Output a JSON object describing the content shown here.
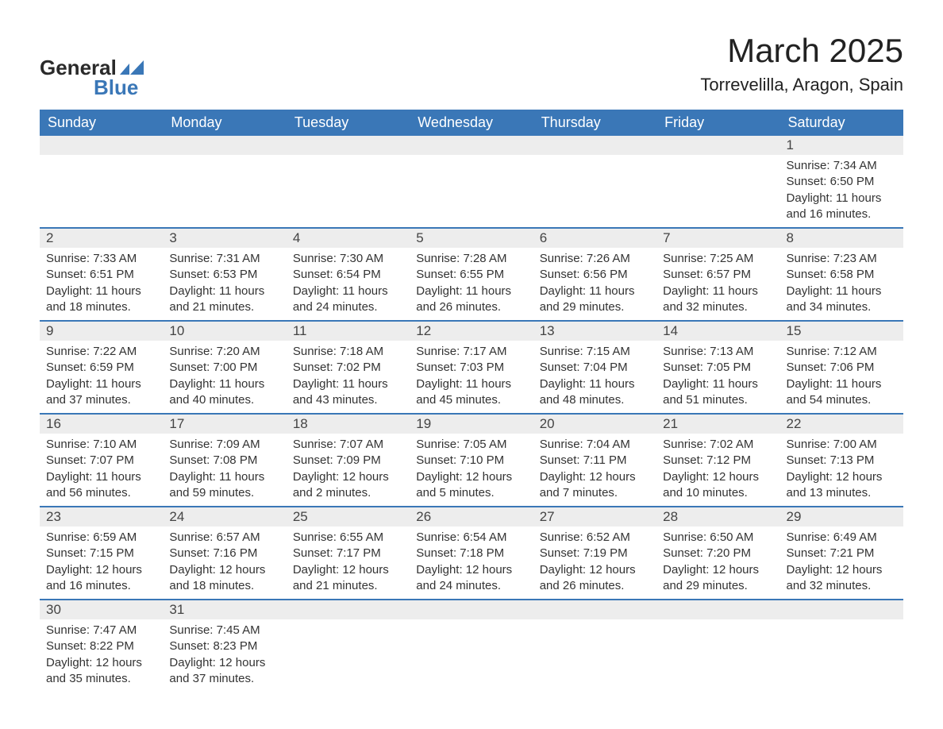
{
  "logo": {
    "text1": "General",
    "text2": "Blue",
    "shape_color": "#3a77b7"
  },
  "title": "March 2025",
  "location": "Torrevelilla, Aragon, Spain",
  "colors": {
    "header_bg": "#3a77b7",
    "header_fg": "#ffffff",
    "daynum_bg": "#ededed",
    "row_border": "#3a77b7",
    "text": "#333333"
  },
  "weekdays": [
    "Sunday",
    "Monday",
    "Tuesday",
    "Wednesday",
    "Thursday",
    "Friday",
    "Saturday"
  ],
  "weeks": [
    [
      {
        "day": "",
        "sunrise": "",
        "sunset": "",
        "daylight": ""
      },
      {
        "day": "",
        "sunrise": "",
        "sunset": "",
        "daylight": ""
      },
      {
        "day": "",
        "sunrise": "",
        "sunset": "",
        "daylight": ""
      },
      {
        "day": "",
        "sunrise": "",
        "sunset": "",
        "daylight": ""
      },
      {
        "day": "",
        "sunrise": "",
        "sunset": "",
        "daylight": ""
      },
      {
        "day": "",
        "sunrise": "",
        "sunset": "",
        "daylight": ""
      },
      {
        "day": "1",
        "sunrise": "Sunrise: 7:34 AM",
        "sunset": "Sunset: 6:50 PM",
        "daylight": "Daylight: 11 hours and 16 minutes."
      }
    ],
    [
      {
        "day": "2",
        "sunrise": "Sunrise: 7:33 AM",
        "sunset": "Sunset: 6:51 PM",
        "daylight": "Daylight: 11 hours and 18 minutes."
      },
      {
        "day": "3",
        "sunrise": "Sunrise: 7:31 AM",
        "sunset": "Sunset: 6:53 PM",
        "daylight": "Daylight: 11 hours and 21 minutes."
      },
      {
        "day": "4",
        "sunrise": "Sunrise: 7:30 AM",
        "sunset": "Sunset: 6:54 PM",
        "daylight": "Daylight: 11 hours and 24 minutes."
      },
      {
        "day": "5",
        "sunrise": "Sunrise: 7:28 AM",
        "sunset": "Sunset: 6:55 PM",
        "daylight": "Daylight: 11 hours and 26 minutes."
      },
      {
        "day": "6",
        "sunrise": "Sunrise: 7:26 AM",
        "sunset": "Sunset: 6:56 PM",
        "daylight": "Daylight: 11 hours and 29 minutes."
      },
      {
        "day": "7",
        "sunrise": "Sunrise: 7:25 AM",
        "sunset": "Sunset: 6:57 PM",
        "daylight": "Daylight: 11 hours and 32 minutes."
      },
      {
        "day": "8",
        "sunrise": "Sunrise: 7:23 AM",
        "sunset": "Sunset: 6:58 PM",
        "daylight": "Daylight: 11 hours and 34 minutes."
      }
    ],
    [
      {
        "day": "9",
        "sunrise": "Sunrise: 7:22 AM",
        "sunset": "Sunset: 6:59 PM",
        "daylight": "Daylight: 11 hours and 37 minutes."
      },
      {
        "day": "10",
        "sunrise": "Sunrise: 7:20 AM",
        "sunset": "Sunset: 7:00 PM",
        "daylight": "Daylight: 11 hours and 40 minutes."
      },
      {
        "day": "11",
        "sunrise": "Sunrise: 7:18 AM",
        "sunset": "Sunset: 7:02 PM",
        "daylight": "Daylight: 11 hours and 43 minutes."
      },
      {
        "day": "12",
        "sunrise": "Sunrise: 7:17 AM",
        "sunset": "Sunset: 7:03 PM",
        "daylight": "Daylight: 11 hours and 45 minutes."
      },
      {
        "day": "13",
        "sunrise": "Sunrise: 7:15 AM",
        "sunset": "Sunset: 7:04 PM",
        "daylight": "Daylight: 11 hours and 48 minutes."
      },
      {
        "day": "14",
        "sunrise": "Sunrise: 7:13 AM",
        "sunset": "Sunset: 7:05 PM",
        "daylight": "Daylight: 11 hours and 51 minutes."
      },
      {
        "day": "15",
        "sunrise": "Sunrise: 7:12 AM",
        "sunset": "Sunset: 7:06 PM",
        "daylight": "Daylight: 11 hours and 54 minutes."
      }
    ],
    [
      {
        "day": "16",
        "sunrise": "Sunrise: 7:10 AM",
        "sunset": "Sunset: 7:07 PM",
        "daylight": "Daylight: 11 hours and 56 minutes."
      },
      {
        "day": "17",
        "sunrise": "Sunrise: 7:09 AM",
        "sunset": "Sunset: 7:08 PM",
        "daylight": "Daylight: 11 hours and 59 minutes."
      },
      {
        "day": "18",
        "sunrise": "Sunrise: 7:07 AM",
        "sunset": "Sunset: 7:09 PM",
        "daylight": "Daylight: 12 hours and 2 minutes."
      },
      {
        "day": "19",
        "sunrise": "Sunrise: 7:05 AM",
        "sunset": "Sunset: 7:10 PM",
        "daylight": "Daylight: 12 hours and 5 minutes."
      },
      {
        "day": "20",
        "sunrise": "Sunrise: 7:04 AM",
        "sunset": "Sunset: 7:11 PM",
        "daylight": "Daylight: 12 hours and 7 minutes."
      },
      {
        "day": "21",
        "sunrise": "Sunrise: 7:02 AM",
        "sunset": "Sunset: 7:12 PM",
        "daylight": "Daylight: 12 hours and 10 minutes."
      },
      {
        "day": "22",
        "sunrise": "Sunrise: 7:00 AM",
        "sunset": "Sunset: 7:13 PM",
        "daylight": "Daylight: 12 hours and 13 minutes."
      }
    ],
    [
      {
        "day": "23",
        "sunrise": "Sunrise: 6:59 AM",
        "sunset": "Sunset: 7:15 PM",
        "daylight": "Daylight: 12 hours and 16 minutes."
      },
      {
        "day": "24",
        "sunrise": "Sunrise: 6:57 AM",
        "sunset": "Sunset: 7:16 PM",
        "daylight": "Daylight: 12 hours and 18 minutes."
      },
      {
        "day": "25",
        "sunrise": "Sunrise: 6:55 AM",
        "sunset": "Sunset: 7:17 PM",
        "daylight": "Daylight: 12 hours and 21 minutes."
      },
      {
        "day": "26",
        "sunrise": "Sunrise: 6:54 AM",
        "sunset": "Sunset: 7:18 PM",
        "daylight": "Daylight: 12 hours and 24 minutes."
      },
      {
        "day": "27",
        "sunrise": "Sunrise: 6:52 AM",
        "sunset": "Sunset: 7:19 PM",
        "daylight": "Daylight: 12 hours and 26 minutes."
      },
      {
        "day": "28",
        "sunrise": "Sunrise: 6:50 AM",
        "sunset": "Sunset: 7:20 PM",
        "daylight": "Daylight: 12 hours and 29 minutes."
      },
      {
        "day": "29",
        "sunrise": "Sunrise: 6:49 AM",
        "sunset": "Sunset: 7:21 PM",
        "daylight": "Daylight: 12 hours and 32 minutes."
      }
    ],
    [
      {
        "day": "30",
        "sunrise": "Sunrise: 7:47 AM",
        "sunset": "Sunset: 8:22 PM",
        "daylight": "Daylight: 12 hours and 35 minutes."
      },
      {
        "day": "31",
        "sunrise": "Sunrise: 7:45 AM",
        "sunset": "Sunset: 8:23 PM",
        "daylight": "Daylight: 12 hours and 37 minutes."
      },
      {
        "day": "",
        "sunrise": "",
        "sunset": "",
        "daylight": ""
      },
      {
        "day": "",
        "sunrise": "",
        "sunset": "",
        "daylight": ""
      },
      {
        "day": "",
        "sunrise": "",
        "sunset": "",
        "daylight": ""
      },
      {
        "day": "",
        "sunrise": "",
        "sunset": "",
        "daylight": ""
      },
      {
        "day": "",
        "sunrise": "",
        "sunset": "",
        "daylight": ""
      }
    ]
  ]
}
